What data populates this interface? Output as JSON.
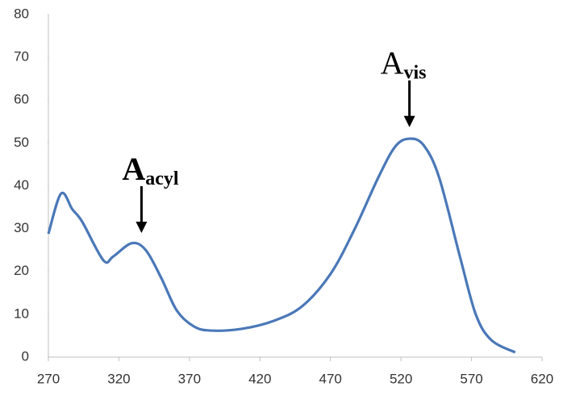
{
  "chart_data": {
    "type": "line",
    "x": [
      270,
      279,
      287,
      294,
      309,
      316,
      329,
      339,
      350,
      361,
      373,
      385,
      407,
      430,
      450,
      470,
      487,
      504,
      516,
      526,
      536,
      547,
      562,
      573,
      584,
      601
    ],
    "series": [
      {
        "color": "#4a78b8",
        "values": [
          28.8,
          38.2,
          34.5,
          31.6,
          22.6,
          23.5,
          26.6,
          25,
          18.5,
          10.9,
          7.2,
          6.2,
          6.6,
          8.5,
          11.9,
          19.4,
          29.8,
          42,
          49.2,
          51,
          49.5,
          42,
          23.2,
          10,
          4,
          1.1
        ]
      }
    ],
    "xlim": [
      270,
      620
    ],
    "xticks": [
      270,
      320,
      370,
      420,
      470,
      520,
      570,
      620
    ],
    "ylim": [
      0,
      80
    ],
    "yticks": [
      0,
      10,
      20,
      30,
      40,
      50,
      60,
      70,
      80
    ],
    "annotations": [
      {
        "text": "A",
        "subscript": "acyl",
        "x": 336,
        "y": 29
      },
      {
        "text": "A",
        "subscript": "vis",
        "x": 526,
        "y": 53.7
      }
    ]
  }
}
